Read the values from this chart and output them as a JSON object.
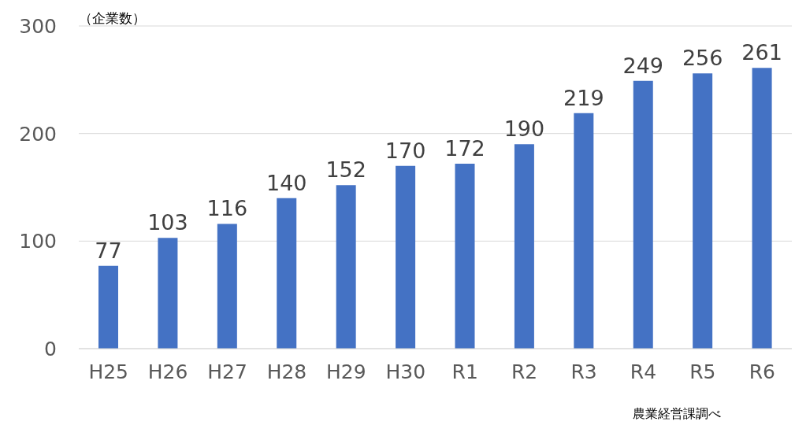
{
  "chart_data": {
    "type": "bar",
    "ylabel": "（企業数）",
    "categories": [
      "H25",
      "H26",
      "H27",
      "H28",
      "H29",
      "H30",
      "R1",
      "R2",
      "R3",
      "R4",
      "R5",
      "R6"
    ],
    "values": [
      77,
      103,
      116,
      140,
      152,
      170,
      172,
      190,
      219,
      249,
      256,
      261
    ],
    "color": "#4472c4",
    "ylim": [
      0,
      300
    ],
    "yticks": [
      0,
      100,
      200,
      300
    ],
    "grid": "y",
    "data_labels": true,
    "annotations": [
      "農業経営課調べ"
    ]
  }
}
